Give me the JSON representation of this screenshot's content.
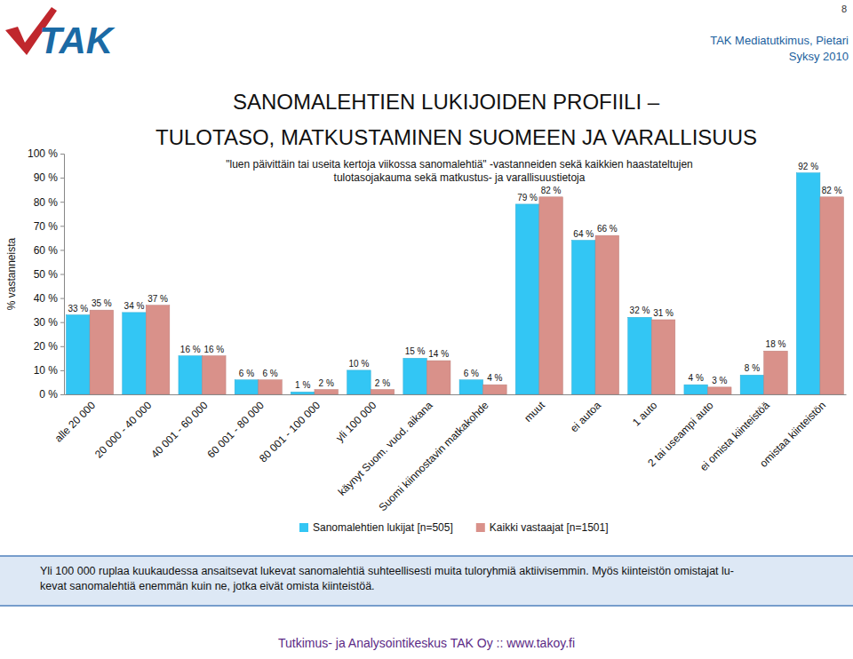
{
  "page": {
    "logo": "TAK",
    "source": "TAK Mediatutkimus, Pietari",
    "season": "Syksy 2010",
    "page_number": "8",
    "summary": [
      "Yli 100 000 ruplaa kuukaudessa ansaitsevat lukevat sanomalehtiä suhteellisesti muita tuloryhmiä aktiivisemmin. Myös kiinteistön omistajat lu-",
      "kevat sanomalehtiä enemmän kuin ne, jotka eivät omista kiinteistöä."
    ],
    "footer": "Tutkimus- ja Analysointikeskus TAK Oy :: www.takoy.fi"
  },
  "chart_data": {
    "type": "bar",
    "title": "SANOMALEHTIEN LUKIJOIDEN PROFIILI –",
    "subtitle": "TULOTASO, MATKUSTAMINEN SUOMEEN JA VARALLISUUS",
    "annotations": [
      "\"luen päivittäin tai useita kertoja viikossa sanomalehtiä\" -vastanneiden sekä kaikkien haastateltujen",
      "tulotasojakauma sekä matkustus- ja varallisuustietoja"
    ],
    "y_label": "% vastanneista",
    "categories": [
      "alle 20 000",
      "20 000 - 40 000",
      "40 001 - 60 000",
      "60 001 - 80 000",
      "80 001 - 100 000",
      "yli 100 000",
      "käynyt Suom. vuod. aikana",
      "Suomi kiinnostavin matkakohde",
      "muut",
      "ei autoa",
      "1 auto",
      "2 tai useampi auto",
      "ei omista kiinteistöä",
      "omistaa kiinteistön"
    ],
    "series": [
      {
        "name": "Sanomalehtien lukijat [n=505]",
        "color": "#33c6f4",
        "values": [
          33,
          34,
          16,
          6,
          1,
          10,
          15,
          6,
          79,
          64,
          32,
          4,
          8,
          92
        ],
        "value_labels": [
          "33 %",
          "34 %",
          "16 %",
          "6 %",
          "1 %",
          "10 %",
          "15 %",
          "6 %",
          "79 %",
          "64 %",
          "32 %",
          "4 %",
          "8 %",
          "92 %"
        ]
      },
      {
        "name": "Kaikki vastaajat [n=1501]",
        "color": "#d9918a",
        "values": [
          35,
          37,
          16,
          6,
          2,
          2,
          14,
          4,
          82,
          66,
          31,
          3,
          18,
          82
        ],
        "value_labels": [
          "35 %",
          "37 %",
          "16 %",
          "6 %",
          "2 %",
          "2 %",
          "14 %",
          "4 %",
          "82 %",
          "66 %",
          "31 %",
          "3 %",
          "18 %",
          "82 %"
        ]
      }
    ],
    "ylim": [
      0,
      100
    ],
    "yticks": [
      {
        "value": 0,
        "label": "0 %"
      },
      {
        "value": 10,
        "label": "10 %"
      },
      {
        "value": 20,
        "label": "20 %"
      },
      {
        "value": 30,
        "label": "30 %"
      },
      {
        "value": 40,
        "label": "40 %"
      },
      {
        "value": 50,
        "label": "50 %"
      },
      {
        "value": 60,
        "label": "60 %"
      },
      {
        "value": 70,
        "label": "70 %"
      },
      {
        "value": 80,
        "label": "80 %"
      },
      {
        "value": 90,
        "label": "90 %"
      },
      {
        "value": 100,
        "label": "100 %"
      }
    ],
    "grid": false,
    "legend": "bottom",
    "data_labels": true
  }
}
